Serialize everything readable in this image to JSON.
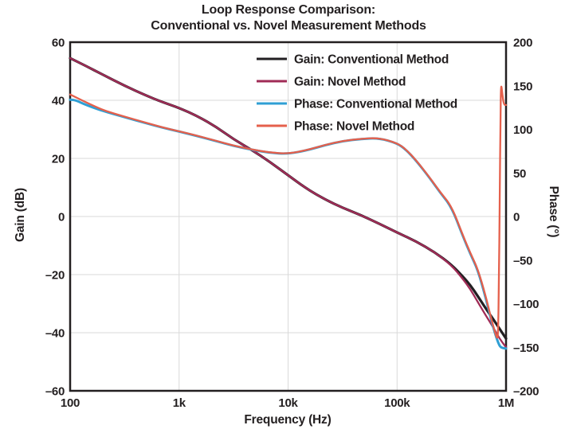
{
  "chart_data": {
    "type": "line",
    "title_line1": "Loop Response Comparison:",
    "title_line2": "Conventional vs. Novel Measurement Methods",
    "xlabel": "Frequency (Hz)",
    "ylabel_left": "Gain (dB)",
    "ylabel_right": "Phase (°)",
    "x_scale": "log",
    "x_range": [
      100,
      1000000
    ],
    "gain_axis": {
      "min": -60,
      "max": 60
    },
    "phase_axis": {
      "min": -200,
      "max": 200
    },
    "grid": true,
    "legend_position": "upper right",
    "frame_color": "#231f20",
    "grid_color": "#d9d9d9",
    "x_ticks": [
      {
        "label": "100",
        "f": 100
      },
      {
        "label": "1k",
        "f": 1000
      },
      {
        "label": "10k",
        "f": 10000
      },
      {
        "label": "100k",
        "f": 100000
      },
      {
        "label": "1M",
        "f": 1000000
      }
    ],
    "gain_ticks": [
      {
        "label": "60",
        "v": 60
      },
      {
        "label": "40",
        "v": 40
      },
      {
        "label": "20",
        "v": 20
      },
      {
        "label": "0",
        "v": 0
      },
      {
        "label": "–20",
        "v": -20
      },
      {
        "label": "–40",
        "v": -40
      },
      {
        "label": "–60",
        "v": -60
      }
    ],
    "phase_ticks": [
      {
        "label": "200",
        "v": 200
      },
      {
        "label": "150",
        "v": 150
      },
      {
        "label": "100",
        "v": 100
      },
      {
        "label": "50",
        "v": 50
      },
      {
        "label": "0",
        "v": 0
      },
      {
        "label": "–50",
        "v": -50
      },
      {
        "label": "–100",
        "v": -100
      },
      {
        "label": "–150",
        "v": -150
      },
      {
        "label": "–200",
        "v": -200
      }
    ],
    "series": [
      {
        "name": "Gain: Conventional Method",
        "axis": "gain",
        "color": "#221f22",
        "width": 3.2,
        "points": [
          [
            100,
            54.5
          ],
          [
            140,
            51.8
          ],
          [
            200,
            48.8
          ],
          [
            316,
            45
          ],
          [
            500,
            41.6
          ],
          [
            700,
            39.4
          ],
          [
            1000,
            37.4
          ],
          [
            1500,
            34.4
          ],
          [
            2200,
            30.8
          ],
          [
            3160,
            26.6
          ],
          [
            4700,
            22.8
          ],
          [
            6800,
            18.8
          ],
          [
            10000,
            14.2
          ],
          [
            15000,
            9.4
          ],
          [
            22000,
            5.8
          ],
          [
            31600,
            3
          ],
          [
            47000,
            0.4
          ],
          [
            68000,
            -2.4
          ],
          [
            100000,
            -5.5
          ],
          [
            150000,
            -8.6
          ],
          [
            220000,
            -12.2
          ],
          [
            316000,
            -16.6
          ],
          [
            400000,
            -20.6
          ],
          [
            470000,
            -23.6
          ],
          [
            550000,
            -27.4
          ],
          [
            650000,
            -31.6
          ],
          [
            765000,
            -35.4
          ],
          [
            870000,
            -38.6
          ],
          [
            1000000,
            -42
          ]
        ]
      },
      {
        "name": "Gain: Novel Method",
        "axis": "gain",
        "color": "#a02b56",
        "width": 2.3,
        "points": [
          [
            100,
            54.5
          ],
          [
            140,
            51.8
          ],
          [
            200,
            48.8
          ],
          [
            316,
            45
          ],
          [
            500,
            41.6
          ],
          [
            700,
            39.4
          ],
          [
            1000,
            37.4
          ],
          [
            1500,
            34.4
          ],
          [
            2200,
            30.8
          ],
          [
            3160,
            26.6
          ],
          [
            4700,
            22.8
          ],
          [
            6800,
            18.8
          ],
          [
            10000,
            14.2
          ],
          [
            15000,
            9.4
          ],
          [
            22000,
            5.8
          ],
          [
            31600,
            3
          ],
          [
            47000,
            0.4
          ],
          [
            68000,
            -2.4
          ],
          [
            100000,
            -5.5
          ],
          [
            150000,
            -8.6
          ],
          [
            220000,
            -12.2
          ],
          [
            316000,
            -16.8
          ],
          [
            400000,
            -21.4
          ],
          [
            470000,
            -25
          ],
          [
            550000,
            -29.4
          ],
          [
            650000,
            -34
          ],
          [
            765000,
            -38.2
          ],
          [
            870000,
            -42
          ],
          [
            1000000,
            -45
          ]
        ]
      },
      {
        "name": "Phase: Conventional Method",
        "axis": "phase",
        "color": "#2f9fd4",
        "width": 3.0,
        "points": [
          [
            100,
            134
          ],
          [
            112,
            133.5
          ],
          [
            140,
            128
          ],
          [
            200,
            121
          ],
          [
            316,
            114
          ],
          [
            500,
            107
          ],
          [
            700,
            102
          ],
          [
            1000,
            97.5
          ],
          [
            1500,
            92
          ],
          [
            2200,
            86.5
          ],
          [
            3160,
            81
          ],
          [
            4700,
            76.5
          ],
          [
            6800,
            73
          ],
          [
            10000,
            71.8
          ],
          [
            15000,
            76
          ],
          [
            22000,
            82
          ],
          [
            31600,
            86.5
          ],
          [
            47000,
            89
          ],
          [
            68000,
            90
          ],
          [
            100000,
            84
          ],
          [
            120000,
            77
          ],
          [
            150000,
            64
          ],
          [
            200000,
            44
          ],
          [
            250000,
            27
          ],
          [
            316000,
            11
          ],
          [
            400000,
            -22
          ],
          [
            470000,
            -43
          ],
          [
            550000,
            -61
          ],
          [
            650000,
            -93
          ],
          [
            720000,
            -116
          ],
          [
            800000,
            -136
          ],
          [
            860000,
            -147
          ],
          [
            900000,
            -150.5
          ],
          [
            1000000,
            -151.5
          ]
        ]
      },
      {
        "name": "Phase: Novel Method",
        "axis": "phase",
        "color": "#e5604c",
        "width": 2.3,
        "points": [
          [
            100,
            140
          ],
          [
            140,
            131
          ],
          [
            200,
            122
          ],
          [
            316,
            114.5
          ],
          [
            500,
            107.5
          ],
          [
            700,
            102.3
          ],
          [
            1000,
            97.8
          ],
          [
            1500,
            92.3
          ],
          [
            2200,
            86.8
          ],
          [
            3160,
            81.3
          ],
          [
            4700,
            76.8
          ],
          [
            6800,
            73.3
          ],
          [
            10000,
            72
          ],
          [
            15000,
            76.2
          ],
          [
            22000,
            82.2
          ],
          [
            31600,
            86.7
          ],
          [
            47000,
            89.2
          ],
          [
            68000,
            90.2
          ],
          [
            100000,
            84.3
          ],
          [
            120000,
            77.3
          ],
          [
            150000,
            64.3
          ],
          [
            200000,
            44.5
          ],
          [
            250000,
            27.5
          ],
          [
            316000,
            12
          ],
          [
            400000,
            -21
          ],
          [
            470000,
            -42
          ],
          [
            550000,
            -60
          ],
          [
            650000,
            -91
          ],
          [
            720000,
            -114
          ],
          [
            780000,
            -130
          ],
          [
            830000,
            -141
          ],
          [
            845000,
            -135
          ],
          [
            860000,
            -80
          ],
          [
            875000,
            20
          ],
          [
            890000,
            120
          ],
          [
            900000,
            154
          ],
          [
            925000,
            140
          ],
          [
            955000,
            128
          ],
          [
            1000000,
            128
          ]
        ]
      }
    ]
  }
}
